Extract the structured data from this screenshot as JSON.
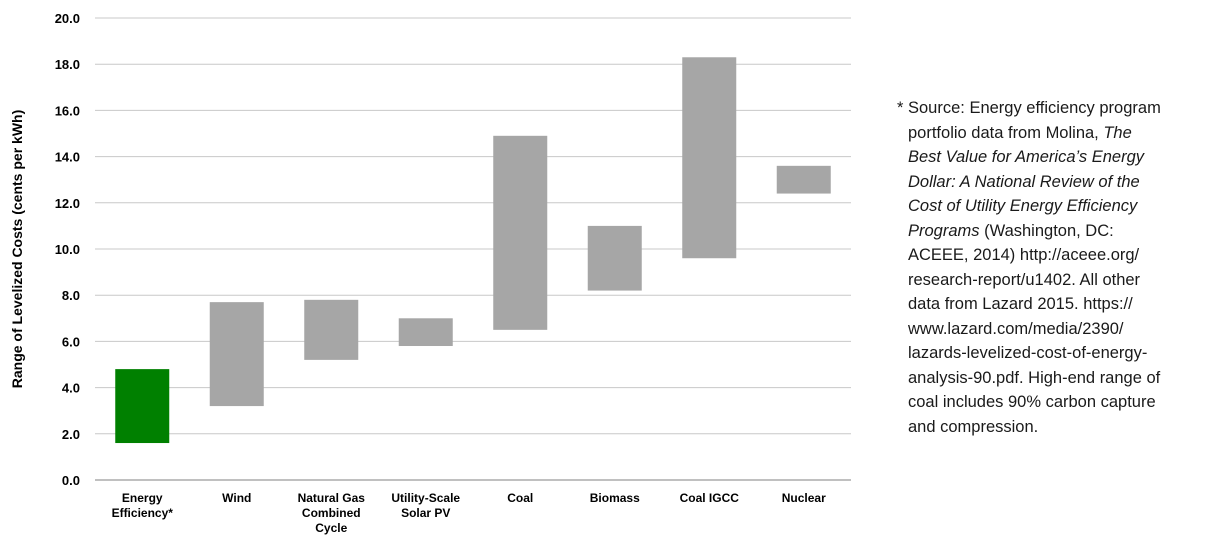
{
  "chart_data": {
    "type": "floating-bar",
    "ylabel": "Range of Levelized Costs (cents per kWh)",
    "ylim": [
      0,
      20
    ],
    "yticks": [
      "0.0",
      "2.0",
      "4.0",
      "6.0",
      "8.0",
      "10.0",
      "12.0",
      "14.0",
      "16.0",
      "18.0",
      "20.0"
    ],
    "grid": true,
    "categories": [
      {
        "label": [
          "Energy",
          "Efficiency*"
        ],
        "low": 1.6,
        "high": 4.8,
        "color": "#008000"
      },
      {
        "label": [
          "Wind"
        ],
        "low": 3.2,
        "high": 7.7,
        "color": "#a6a6a6"
      },
      {
        "label": [
          "Natural Gas",
          "Combined",
          "Cycle"
        ],
        "low": 5.2,
        "high": 7.8,
        "color": "#a6a6a6"
      },
      {
        "label": [
          "Utility-Scale",
          "Solar PV"
        ],
        "low": 5.8,
        "high": 7.0,
        "color": "#a6a6a6"
      },
      {
        "label": [
          "Coal"
        ],
        "low": 6.5,
        "high": 14.9,
        "color": "#a6a6a6"
      },
      {
        "label": [
          "Biomass"
        ],
        "low": 8.2,
        "high": 11.0,
        "color": "#a6a6a6"
      },
      {
        "label": [
          "Coal IGCC"
        ],
        "low": 9.6,
        "high": 18.3,
        "color": "#a6a6a6"
      },
      {
        "label": [
          "Nuclear"
        ],
        "low": 12.4,
        "high": 13.6,
        "color": "#a6a6a6"
      }
    ]
  },
  "note": {
    "star": "*",
    "l1": "Source: Energy efficiency program",
    "l2a": "portfolio data from Molina, ",
    "l2b": "The",
    "l3": "Best Value for America’s Energy",
    "l4": "Dollar: A National Review of the",
    "l5": "Cost of Utility Energy Efficiency",
    "l6a": "Programs",
    "l6b": " (Washington, DC:",
    "l7": "ACEEE, 2014) http://aceee.org/",
    "l8": "research-report/u1402. All other",
    "l9": "data from Lazard 2015. https://",
    "l10": "www.lazard.com/media/2390/",
    "l11": "lazards-levelized-cost-of-energy-",
    "l12": "analysis-90.pdf. High-end range of",
    "l13": "coal includes 90% carbon capture",
    "l14": "and compression."
  }
}
